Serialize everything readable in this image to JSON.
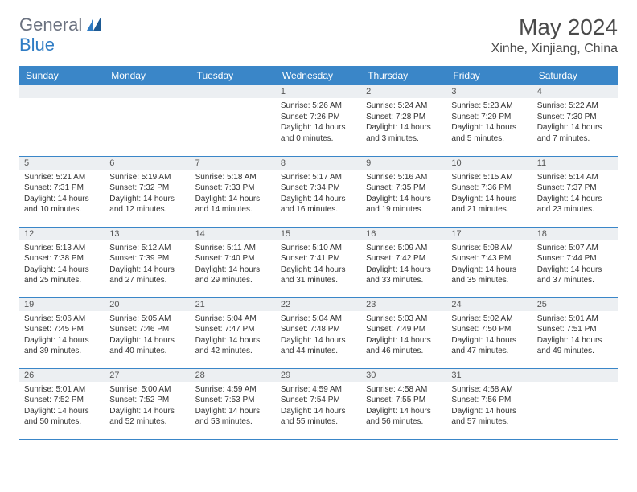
{
  "logo": {
    "part1": "General",
    "part2": "Blue"
  },
  "title": "May 2024",
  "location": "Xinhe, Xinjiang, China",
  "header_bg": "#3a86c8",
  "dayHeaders": [
    "Sunday",
    "Monday",
    "Tuesday",
    "Wednesday",
    "Thursday",
    "Friday",
    "Saturday"
  ],
  "weeks": [
    [
      null,
      null,
      null,
      {
        "n": "1",
        "sr": "5:26 AM",
        "ss": "7:26 PM",
        "dl": "14 hours and 0 minutes."
      },
      {
        "n": "2",
        "sr": "5:24 AM",
        "ss": "7:28 PM",
        "dl": "14 hours and 3 minutes."
      },
      {
        "n": "3",
        "sr": "5:23 AM",
        "ss": "7:29 PM",
        "dl": "14 hours and 5 minutes."
      },
      {
        "n": "4",
        "sr": "5:22 AM",
        "ss": "7:30 PM",
        "dl": "14 hours and 7 minutes."
      }
    ],
    [
      {
        "n": "5",
        "sr": "5:21 AM",
        "ss": "7:31 PM",
        "dl": "14 hours and 10 minutes."
      },
      {
        "n": "6",
        "sr": "5:19 AM",
        "ss": "7:32 PM",
        "dl": "14 hours and 12 minutes."
      },
      {
        "n": "7",
        "sr": "5:18 AM",
        "ss": "7:33 PM",
        "dl": "14 hours and 14 minutes."
      },
      {
        "n": "8",
        "sr": "5:17 AM",
        "ss": "7:34 PM",
        "dl": "14 hours and 16 minutes."
      },
      {
        "n": "9",
        "sr": "5:16 AM",
        "ss": "7:35 PM",
        "dl": "14 hours and 19 minutes."
      },
      {
        "n": "10",
        "sr": "5:15 AM",
        "ss": "7:36 PM",
        "dl": "14 hours and 21 minutes."
      },
      {
        "n": "11",
        "sr": "5:14 AM",
        "ss": "7:37 PM",
        "dl": "14 hours and 23 minutes."
      }
    ],
    [
      {
        "n": "12",
        "sr": "5:13 AM",
        "ss": "7:38 PM",
        "dl": "14 hours and 25 minutes."
      },
      {
        "n": "13",
        "sr": "5:12 AM",
        "ss": "7:39 PM",
        "dl": "14 hours and 27 minutes."
      },
      {
        "n": "14",
        "sr": "5:11 AM",
        "ss": "7:40 PM",
        "dl": "14 hours and 29 minutes."
      },
      {
        "n": "15",
        "sr": "5:10 AM",
        "ss": "7:41 PM",
        "dl": "14 hours and 31 minutes."
      },
      {
        "n": "16",
        "sr": "5:09 AM",
        "ss": "7:42 PM",
        "dl": "14 hours and 33 minutes."
      },
      {
        "n": "17",
        "sr": "5:08 AM",
        "ss": "7:43 PM",
        "dl": "14 hours and 35 minutes."
      },
      {
        "n": "18",
        "sr": "5:07 AM",
        "ss": "7:44 PM",
        "dl": "14 hours and 37 minutes."
      }
    ],
    [
      {
        "n": "19",
        "sr": "5:06 AM",
        "ss": "7:45 PM",
        "dl": "14 hours and 39 minutes."
      },
      {
        "n": "20",
        "sr": "5:05 AM",
        "ss": "7:46 PM",
        "dl": "14 hours and 40 minutes."
      },
      {
        "n": "21",
        "sr": "5:04 AM",
        "ss": "7:47 PM",
        "dl": "14 hours and 42 minutes."
      },
      {
        "n": "22",
        "sr": "5:04 AM",
        "ss": "7:48 PM",
        "dl": "14 hours and 44 minutes."
      },
      {
        "n": "23",
        "sr": "5:03 AM",
        "ss": "7:49 PM",
        "dl": "14 hours and 46 minutes."
      },
      {
        "n": "24",
        "sr": "5:02 AM",
        "ss": "7:50 PM",
        "dl": "14 hours and 47 minutes."
      },
      {
        "n": "25",
        "sr": "5:01 AM",
        "ss": "7:51 PM",
        "dl": "14 hours and 49 minutes."
      }
    ],
    [
      {
        "n": "26",
        "sr": "5:01 AM",
        "ss": "7:52 PM",
        "dl": "14 hours and 50 minutes."
      },
      {
        "n": "27",
        "sr": "5:00 AM",
        "ss": "7:52 PM",
        "dl": "14 hours and 52 minutes."
      },
      {
        "n": "28",
        "sr": "4:59 AM",
        "ss": "7:53 PM",
        "dl": "14 hours and 53 minutes."
      },
      {
        "n": "29",
        "sr": "4:59 AM",
        "ss": "7:54 PM",
        "dl": "14 hours and 55 minutes."
      },
      {
        "n": "30",
        "sr": "4:58 AM",
        "ss": "7:55 PM",
        "dl": "14 hours and 56 minutes."
      },
      {
        "n": "31",
        "sr": "4:58 AM",
        "ss": "7:56 PM",
        "dl": "14 hours and 57 minutes."
      },
      null
    ]
  ],
  "labels": {
    "sunrise": "Sunrise:",
    "sunset": "Sunset:",
    "daylight": "Daylight:"
  }
}
